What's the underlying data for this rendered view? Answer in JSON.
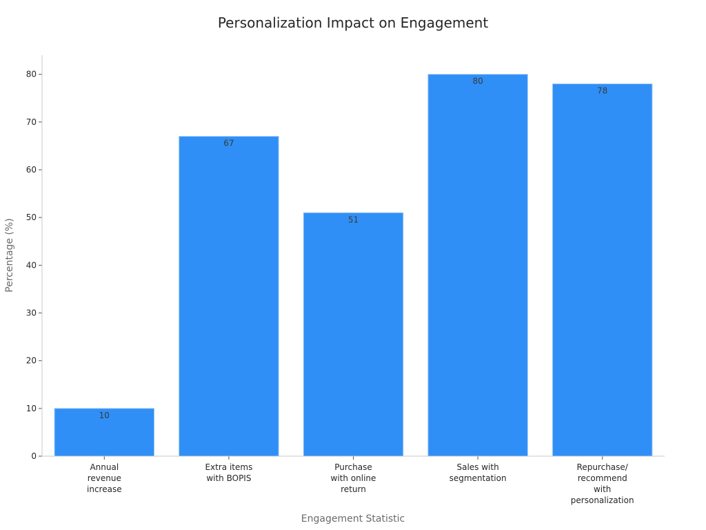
{
  "chart_data": {
    "type": "bar",
    "title": "Personalization Impact on Engagement",
    "xlabel": "Engagement Statistic",
    "ylabel": "Percentage (%)",
    "ylim": [
      0,
      84
    ],
    "yticks": [
      0,
      10,
      20,
      30,
      40,
      50,
      60,
      70,
      80
    ],
    "grid": false,
    "categories": [
      [
        "Annual",
        "revenue",
        "increase"
      ],
      [
        "Extra items",
        "with BOPIS"
      ],
      [
        "Purchase",
        "with online",
        "return"
      ],
      [
        "Sales with",
        "segmentation"
      ],
      [
        "Repurchase/",
        "recommend",
        "with",
        "personalization"
      ]
    ],
    "values": [
      10,
      67,
      51,
      80,
      78
    ],
    "bar_color": "#2f8ff6"
  }
}
